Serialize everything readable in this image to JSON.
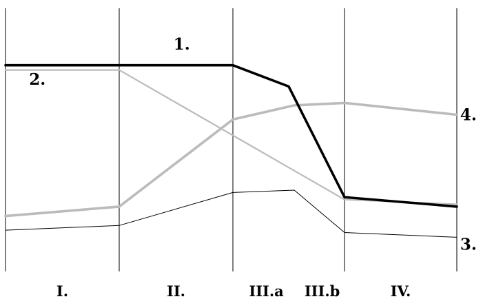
{
  "chart_data": {
    "type": "line",
    "title": "",
    "xlabel": "",
    "ylabel": "",
    "categories": [
      "I.",
      "II.",
      "III.a",
      "III.b",
      "IV."
    ],
    "x_breakpoints": [
      0,
      1,
      2,
      2.5,
      3,
      4
    ],
    "grid": "vertical",
    "ylim": [
      0,
      100
    ],
    "series": [
      {
        "name": "1.",
        "color": "#000000",
        "weight": "heavy",
        "x": [
          0,
          1,
          2,
          2.5,
          3,
          4
        ],
        "y": [
          84,
          84,
          84,
          75,
          28,
          24
        ]
      },
      {
        "name": "2.",
        "color": "#bbbbbb",
        "weight": "medium",
        "x": [
          0,
          1,
          3,
          4
        ],
        "y": [
          82,
          82,
          27,
          25
        ]
      },
      {
        "name": "3.",
        "color": "#000000",
        "weight": "thin",
        "x": [
          0,
          1,
          2,
          2.55,
          3,
          4
        ],
        "y": [
          14,
          16,
          30,
          31,
          13,
          11
        ]
      },
      {
        "name": "4.",
        "color": "#bbbbbb",
        "weight": "heavy",
        "x": [
          0,
          1,
          2,
          2.55,
          3,
          4
        ],
        "y": [
          20,
          24,
          61,
          67,
          68,
          63
        ]
      }
    ]
  }
}
